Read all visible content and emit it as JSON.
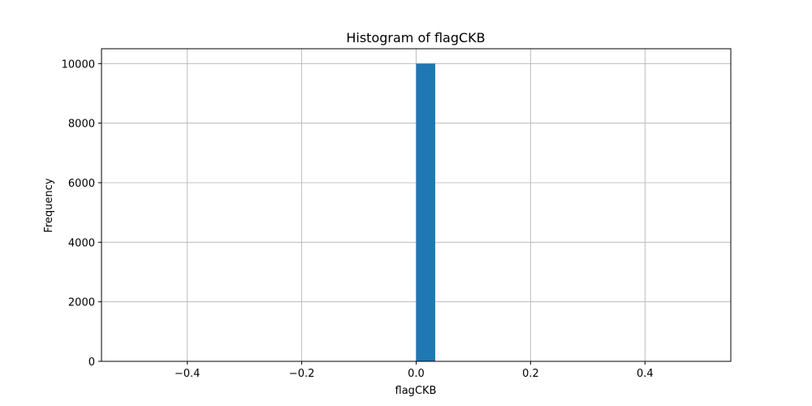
{
  "chart_data": {
    "type": "bar",
    "title": "Histogram of flagCKB",
    "xlabel": "flagCKB",
    "ylabel": "Frequency",
    "xlim": [
      -0.55,
      0.55
    ],
    "ylim": [
      0,
      10500
    ],
    "xticks": [
      -0.4,
      -0.2,
      0.0,
      0.2,
      0.4
    ],
    "xtick_labels": [
      "−0.4",
      "−0.2",
      "0.0",
      "0.2",
      "0.4"
    ],
    "yticks": [
      0,
      2000,
      4000,
      6000,
      8000,
      10000
    ],
    "ytick_labels": [
      "0",
      "2000",
      "4000",
      "6000",
      "8000",
      "10000"
    ],
    "grid": true,
    "bins": [
      {
        "x0": 0.0,
        "x1": 0.0333,
        "count": 10000
      }
    ],
    "bar_color": "#1f77b4"
  }
}
